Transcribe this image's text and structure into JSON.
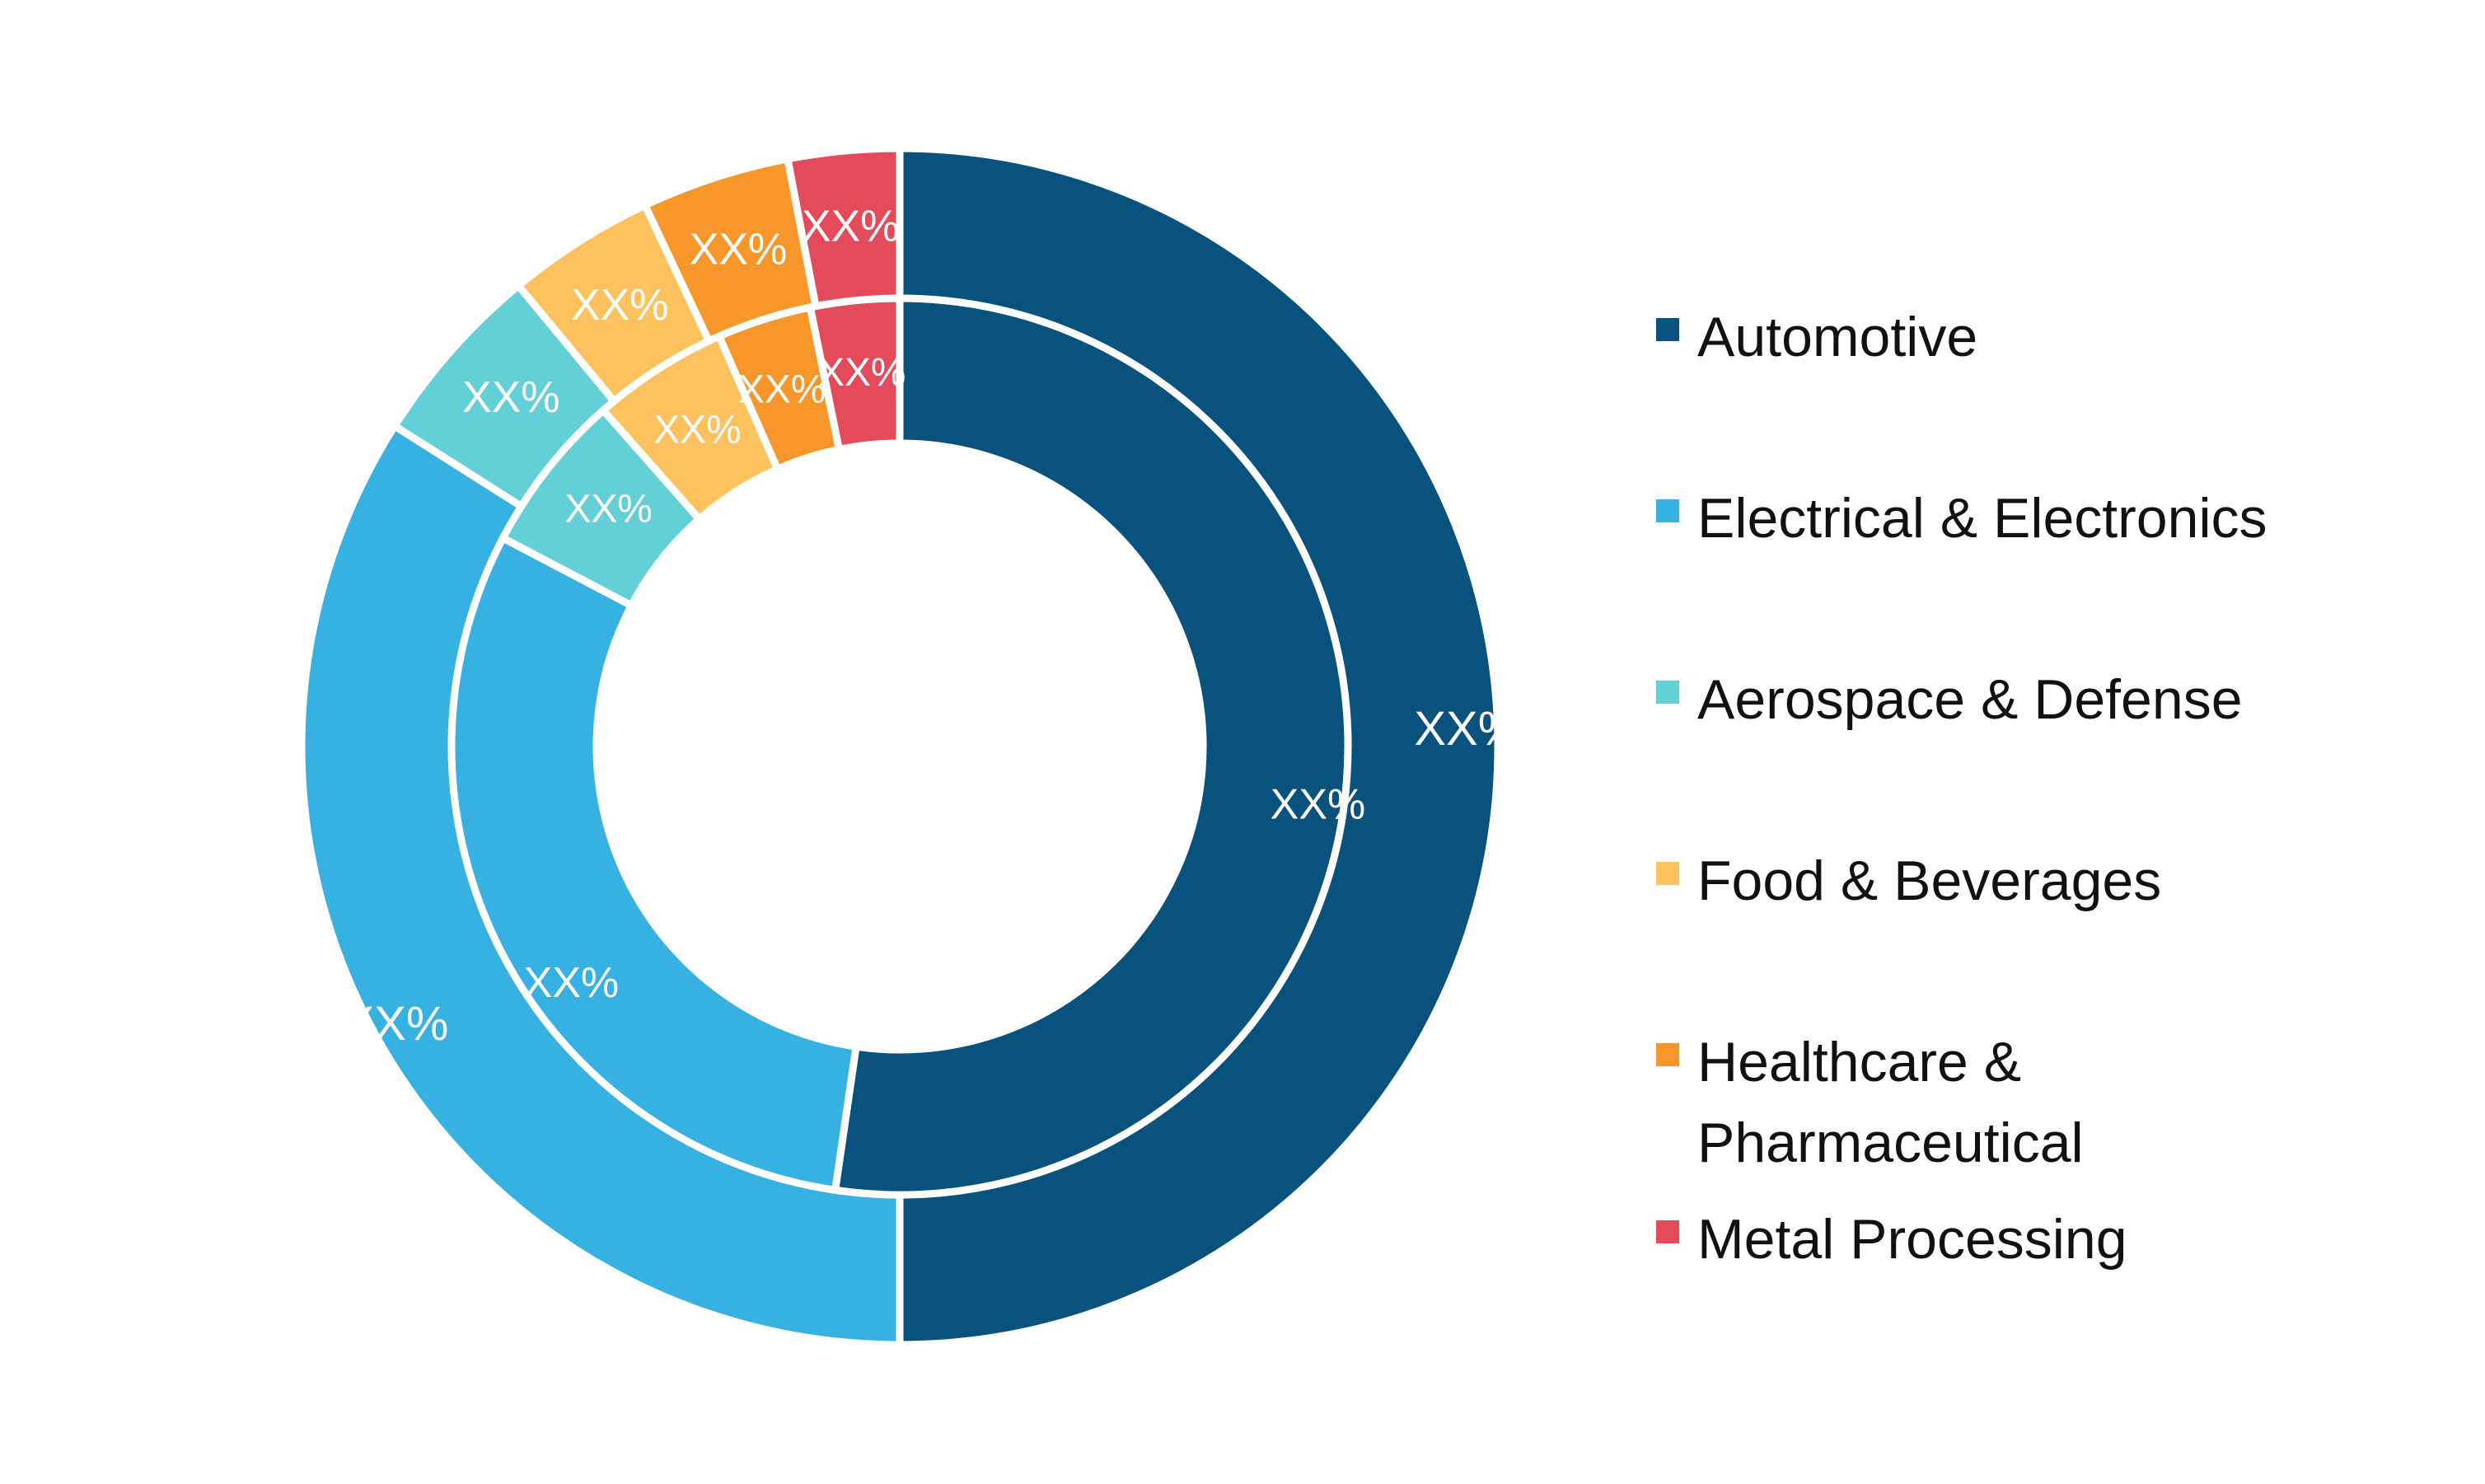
{
  "chart_data": {
    "type": "pie",
    "series": [
      {
        "name": "",
        "ring": "outer",
        "categories": [
          "Automotive",
          "Electrical & Electronics",
          "Aerospace & Defense",
          "Food & Beverages",
          "Healthcare & Pharmaceutical",
          "Metal Processing"
        ],
        "values": [
          50,
          34,
          5,
          4,
          4,
          3
        ],
        "labels": [
          "XX%",
          "XX%",
          "XX%",
          "XX%",
          "XX%",
          "XX%"
        ]
      },
      {
        "name": "",
        "ring": "inner",
        "categories": [
          "Automotive",
          "Electrical & Electronics",
          "Aerospace & Defense",
          "Food & Beverages",
          "Healthcare & Pharmaceutical",
          "Metal Processing"
        ],
        "values": [
          52.3,
          30.4,
          5.8,
          4.9,
          3.4,
          3.2
        ],
        "labels": [
          "XX%",
          "XX%",
          "XX%",
          "XX%",
          "XX%",
          "XX%"
        ]
      }
    ],
    "colors": [
      "#0a527e",
      "#37b0e2",
      "#63cfd6",
      "#fdc25d",
      "#f7962b",
      "#e34a5a"
    ],
    "legend": {
      "position": "right",
      "entries": [
        "Automotive",
        "Electrical & Electronics",
        "Aerospace & Defense",
        "Food & Beverages",
        "Healthcare & Pharmaceutical",
        "Metal Processing"
      ],
      "display_lines": [
        [
          "Automotive"
        ],
        [
          "Electrical & Electronics"
        ],
        [
          "Aerospace & Defense"
        ],
        [
          "Food & Beverages"
        ],
        [
          "Healthcare &",
          "Pharmaceutical"
        ],
        [
          "Metal Processing"
        ]
      ]
    }
  }
}
